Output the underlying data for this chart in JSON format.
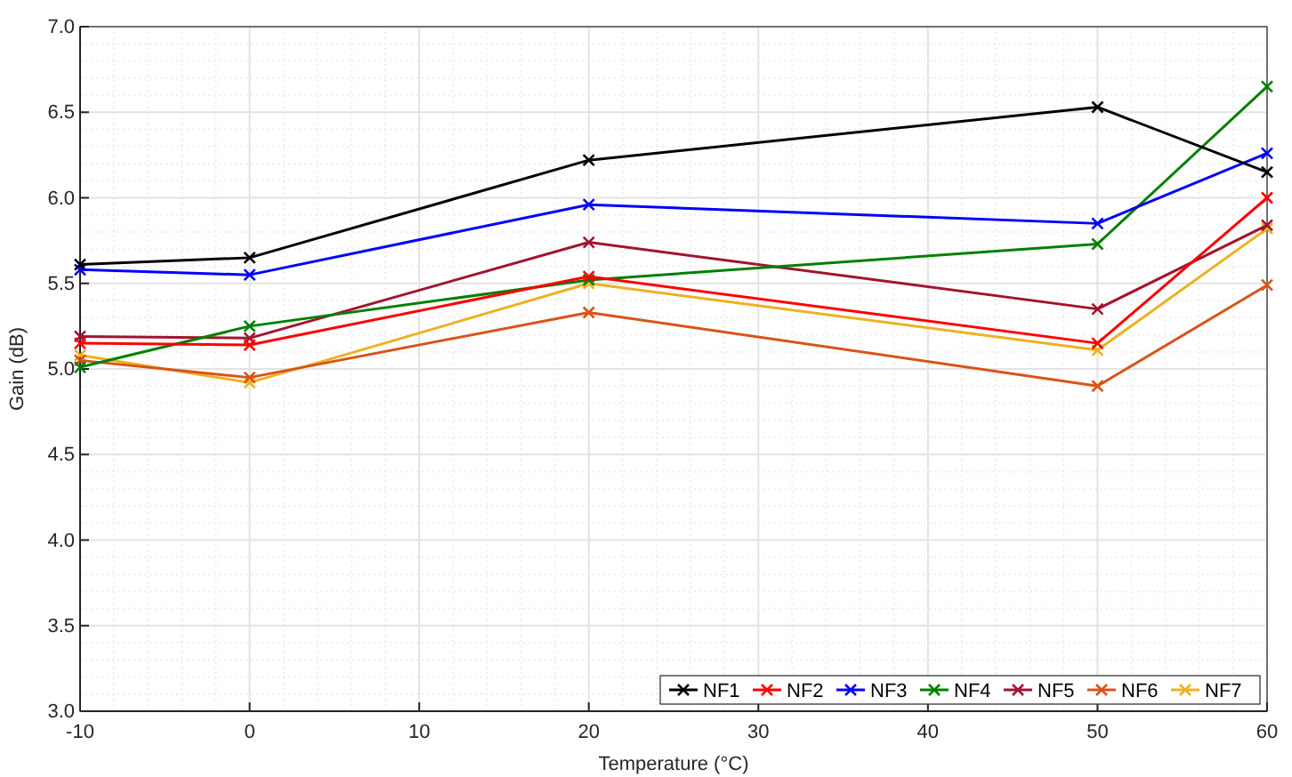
{
  "chart_data": {
    "type": "line",
    "xlabel": "Temperature (°C)",
    "ylabel": "Gain (dB)",
    "x": [
      -10,
      0,
      20,
      50,
      60
    ],
    "xlim": [
      -10,
      60
    ],
    "xticks": [
      -10,
      0,
      10,
      20,
      30,
      40,
      50,
      60
    ],
    "ylim": [
      3,
      7
    ],
    "yticks": [
      {
        "value": 3,
        "label": "3.0"
      },
      {
        "value": 3.5,
        "label": "3.5"
      },
      {
        "value": 4,
        "label": "4.0"
      },
      {
        "value": 4.5,
        "label": "4.5"
      },
      {
        "value": 5,
        "label": "5.0"
      },
      {
        "value": 5.5,
        "label": "5.5"
      },
      {
        "value": 6,
        "label": "6.0"
      },
      {
        "value": 6.5,
        "label": "6.5"
      },
      {
        "value": 7,
        "label": "7.0"
      }
    ],
    "grid": true,
    "legend": "bottom right",
    "marker": "cross",
    "line_style": "solid",
    "series": [
      {
        "name": "NF1",
        "color": "#000000",
        "values": [
          5.61,
          5.65,
          6.22,
          6.53,
          6.15
        ]
      },
      {
        "name": "NF2",
        "color": "#ff0000",
        "values": [
          5.15,
          5.14,
          5.54,
          5.15,
          6.0
        ]
      },
      {
        "name": "NF3",
        "color": "#0000ff",
        "values": [
          5.58,
          5.55,
          5.96,
          5.85,
          6.26
        ]
      },
      {
        "name": "NF4",
        "color": "#008000",
        "values": [
          5.01,
          5.25,
          5.52,
          5.73,
          6.65
        ]
      },
      {
        "name": "NF5",
        "color": "#a2142f",
        "values": [
          5.19,
          5.18,
          5.74,
          5.35,
          5.84
        ]
      },
      {
        "name": "NF6",
        "color": "#d95319",
        "values": [
          5.05,
          4.95,
          5.33,
          4.9,
          5.49
        ]
      },
      {
        "name": "NF7",
        "color": "#edb120",
        "values": [
          5.08,
          4.92,
          5.5,
          5.11,
          5.82
        ]
      }
    ]
  }
}
